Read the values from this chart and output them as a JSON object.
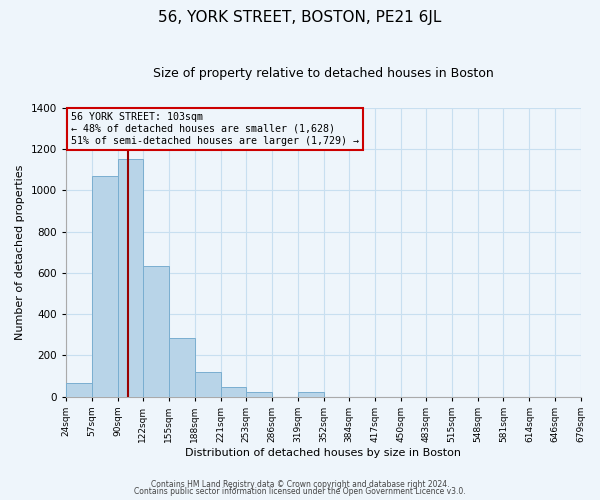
{
  "title": "56, YORK STREET, BOSTON, PE21 6JL",
  "subtitle": "Size of property relative to detached houses in Boston",
  "xlabel": "Distribution of detached houses by size in Boston",
  "ylabel": "Number of detached properties",
  "bins": [
    24,
    57,
    90,
    122,
    155,
    188,
    221,
    253,
    286,
    319,
    352,
    384,
    417,
    450,
    483,
    515,
    548,
    581,
    614,
    646,
    679
  ],
  "bin_labels": [
    "24sqm",
    "57sqm",
    "90sqm",
    "122sqm",
    "155sqm",
    "188sqm",
    "221sqm",
    "253sqm",
    "286sqm",
    "319sqm",
    "352sqm",
    "384sqm",
    "417sqm",
    "450sqm",
    "483sqm",
    "515sqm",
    "548sqm",
    "581sqm",
    "614sqm",
    "646sqm",
    "679sqm"
  ],
  "counts": [
    65,
    1070,
    1155,
    635,
    285,
    120,
    47,
    22,
    0,
    22,
    0,
    0,
    0,
    0,
    0,
    0,
    0,
    0,
    0,
    0
  ],
  "bar_color": "#b8d4e8",
  "bar_edge_color": "#7aaed0",
  "vline_x": 103,
  "vline_color": "#990000",
  "ylim": [
    0,
    1400
  ],
  "yticks": [
    0,
    200,
    400,
    600,
    800,
    1000,
    1200,
    1400
  ],
  "annotation_title": "56 YORK STREET: 103sqm",
  "annotation_line1": "← 48% of detached houses are smaller (1,628)",
  "annotation_line2": "51% of semi-detached houses are larger (1,729) →",
  "annotation_box_color": "#cc0000",
  "grid_color": "#c8dff0",
  "background_color": "#eef5fb",
  "footer1": "Contains HM Land Registry data © Crown copyright and database right 2024.",
  "footer2": "Contains public sector information licensed under the Open Government Licence v3.0."
}
